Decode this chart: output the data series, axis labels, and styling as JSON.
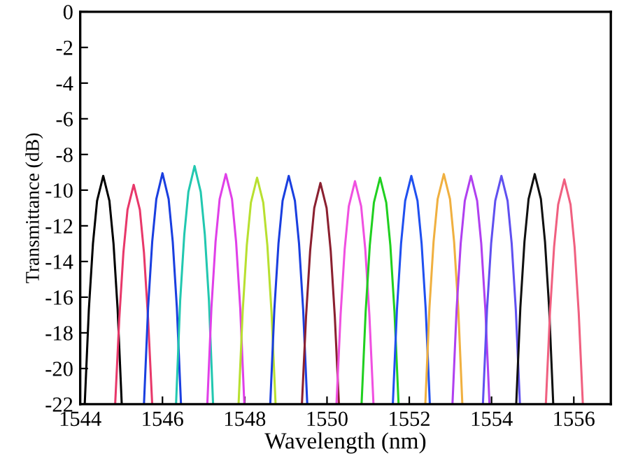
{
  "chart_data": {
    "type": "line",
    "xlabel": "Wavelength (nm)",
    "ylabel": "Transmittance (dB)",
    "xlim": [
      1544,
      1556.9
    ],
    "ylim": [
      -22,
      0
    ],
    "xticks": [
      1544,
      1546,
      1548,
      1550,
      1552,
      1554,
      1556
    ],
    "yticks": [
      -22,
      -20,
      -18,
      -16,
      -14,
      -12,
      -10,
      -8,
      -6,
      -4,
      -2,
      0
    ],
    "grid": false,
    "legend": false,
    "marker": "none",
    "line_style": "solid",
    "series": [
      {
        "color": "#000000",
        "x": [
          1544.11,
          1544.21,
          1544.31,
          1544.41,
          1544.56,
          1544.71,
          1544.81,
          1544.91,
          1545.01
        ],
        "values": [
          -22,
          -16.7,
          -13.0,
          -10.6,
          -9.2,
          -10.6,
          -13.0,
          -16.7,
          -22
        ]
      },
      {
        "color": "#e8386a",
        "x": [
          1544.85,
          1544.95,
          1545.05,
          1545.15,
          1545.3,
          1545.45,
          1545.55,
          1545.65,
          1545.75
        ],
        "values": [
          -22,
          -17.2,
          -13.5,
          -11.1,
          -9.7,
          -11.1,
          -13.5,
          -17.2,
          -22
        ]
      },
      {
        "color": "#1a3fe0",
        "x": [
          1545.55,
          1545.65,
          1545.75,
          1545.85,
          1546.0,
          1546.15,
          1546.25,
          1546.35,
          1546.45
        ],
        "values": [
          -22,
          -16.6,
          -12.9,
          -10.5,
          -9.05,
          -10.5,
          -12.9,
          -16.6,
          -22
        ]
      },
      {
        "color": "#22c8b0",
        "x": [
          1546.33,
          1546.43,
          1546.53,
          1546.63,
          1546.78,
          1546.93,
          1547.03,
          1547.13,
          1547.23
        ],
        "values": [
          -22,
          -16.2,
          -12.5,
          -10.1,
          -8.65,
          -10.1,
          -12.5,
          -16.2,
          -22
        ]
      },
      {
        "color": "#e040e8",
        "x": [
          1547.09,
          1547.19,
          1547.29,
          1547.39,
          1547.54,
          1547.69,
          1547.79,
          1547.89,
          1547.99
        ],
        "values": [
          -22,
          -16.6,
          -12.9,
          -10.5,
          -9.1,
          -10.5,
          -12.9,
          -16.6,
          -22
        ]
      },
      {
        "color": "#b8e030",
        "x": [
          1547.85,
          1547.95,
          1548.05,
          1548.15,
          1548.3,
          1548.45,
          1548.55,
          1548.65,
          1548.75
        ],
        "values": [
          -22,
          -16.8,
          -13.1,
          -10.7,
          -9.3,
          -10.7,
          -13.1,
          -16.8,
          -22
        ]
      },
      {
        "color": "#1a3fe0",
        "x": [
          1548.62,
          1548.72,
          1548.82,
          1548.92,
          1549.07,
          1549.22,
          1549.32,
          1549.42,
          1549.52
        ],
        "values": [
          -22,
          -16.7,
          -13.0,
          -10.6,
          -9.2,
          -10.6,
          -13.0,
          -16.7,
          -22
        ]
      },
      {
        "color": "#8b2030",
        "x": [
          1549.39,
          1549.49,
          1549.59,
          1549.69,
          1549.84,
          1549.99,
          1550.09,
          1550.19,
          1550.29
        ],
        "values": [
          -22,
          -17.1,
          -13.4,
          -11.0,
          -9.6,
          -11.0,
          -13.4,
          -17.1,
          -22
        ]
      },
      {
        "color": "#f050e0",
        "x": [
          1550.23,
          1550.33,
          1550.43,
          1550.53,
          1550.68,
          1550.83,
          1550.93,
          1551.03,
          1551.13
        ],
        "values": [
          -22,
          -17.0,
          -13.3,
          -10.9,
          -9.5,
          -10.9,
          -13.3,
          -17.0,
          -22
        ]
      },
      {
        "color": "#20d020",
        "x": [
          1550.84,
          1550.94,
          1551.04,
          1551.14,
          1551.29,
          1551.44,
          1551.54,
          1551.64,
          1551.74
        ],
        "values": [
          -22,
          -16.8,
          -13.1,
          -10.7,
          -9.3,
          -10.7,
          -13.1,
          -16.8,
          -22
        ]
      },
      {
        "color": "#2050f0",
        "x": [
          1551.6,
          1551.7,
          1551.8,
          1551.9,
          1552.05,
          1552.2,
          1552.3,
          1552.4,
          1552.5
        ],
        "values": [
          -22,
          -16.7,
          -13.0,
          -10.6,
          -9.2,
          -10.6,
          -13.0,
          -16.7,
          -22
        ]
      },
      {
        "color": "#f0b040",
        "x": [
          1552.39,
          1552.49,
          1552.59,
          1552.69,
          1552.84,
          1552.99,
          1553.09,
          1553.19,
          1553.29
        ],
        "values": [
          -22,
          -16.6,
          -12.9,
          -10.5,
          -9.1,
          -10.5,
          -12.9,
          -16.6,
          -22
        ]
      },
      {
        "color": "#b040f0",
        "x": [
          1553.05,
          1553.15,
          1553.25,
          1553.35,
          1553.5,
          1553.65,
          1553.75,
          1553.85,
          1553.95
        ],
        "values": [
          -22,
          -16.7,
          -13.0,
          -10.6,
          -9.2,
          -10.6,
          -13.0,
          -16.7,
          -22
        ]
      },
      {
        "color": "#6050f0",
        "x": [
          1553.79,
          1553.89,
          1553.99,
          1554.09,
          1554.24,
          1554.39,
          1554.49,
          1554.59,
          1554.69
        ],
        "values": [
          -22,
          -16.7,
          -13.0,
          -10.6,
          -9.2,
          -10.6,
          -13.0,
          -16.7,
          -22
        ]
      },
      {
        "color": "#101010",
        "x": [
          1554.6,
          1554.7,
          1554.8,
          1554.9,
          1555.05,
          1555.2,
          1555.3,
          1555.4,
          1555.5
        ],
        "values": [
          -22,
          -16.6,
          -12.9,
          -10.5,
          -9.1,
          -10.5,
          -12.9,
          -16.6,
          -22
        ]
      },
      {
        "color": "#f06080",
        "x": [
          1555.32,
          1555.42,
          1555.52,
          1555.62,
          1555.77,
          1555.92,
          1556.02,
          1556.12,
          1556.22
        ],
        "values": [
          -22,
          -16.9,
          -13.2,
          -10.8,
          -9.4,
          -10.8,
          -13.2,
          -16.9,
          -22
        ]
      }
    ]
  }
}
